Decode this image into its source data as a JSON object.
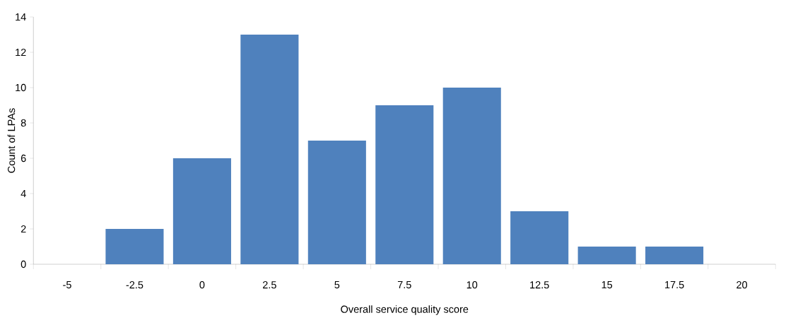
{
  "chart_data": {
    "type": "bar",
    "xlabel": "Overall service quality score",
    "ylabel": "Count of LPAs",
    "categories": [
      "-5",
      "-2.5",
      "0",
      "2.5",
      "5",
      "7.5",
      "10",
      "12.5",
      "15",
      "17.5",
      "20"
    ],
    "values": [
      0,
      2,
      6,
      13,
      7,
      9,
      10,
      3,
      1,
      1,
      0
    ],
    "color": "#4f81bd",
    "ylim": [
      0,
      14
    ],
    "yticks": [
      0,
      2,
      4,
      6,
      8,
      10,
      12,
      14
    ],
    "grid": false
  }
}
